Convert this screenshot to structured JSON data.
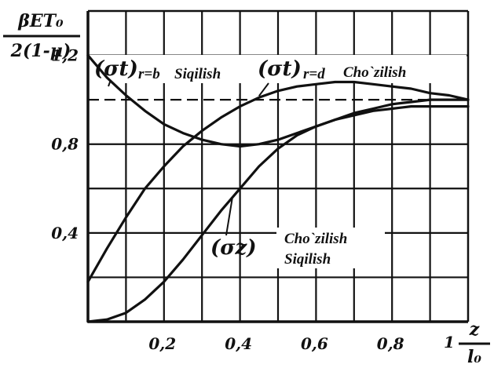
{
  "chart_data": {
    "type": "line",
    "ylabel_numerator": "βET₀",
    "ylabel_denominator": "2(1-μ)",
    "xlabel_numerator": "z",
    "xlabel_denominator": "l₀",
    "xlabel_prefix": "1",
    "xlim": [
      0,
      1.0
    ],
    "ylim": [
      0,
      1.4
    ],
    "x_ticks": [
      {
        "value": 0.2,
        "label": "0,2"
      },
      {
        "value": 0.4,
        "label": "0,4"
      },
      {
        "value": 0.6,
        "label": "0,6"
      },
      {
        "value": 0.8,
        "label": "0,8"
      }
    ],
    "y_ticks": [
      {
        "value": 0.4,
        "label": "0,4"
      },
      {
        "value": 0.8,
        "label": "0,8"
      },
      {
        "value": 1.2,
        "label": "1,2"
      }
    ],
    "reference_line": {
      "y": 1.0,
      "style": "dashed"
    },
    "grid": true,
    "series": [
      {
        "name": "(σt) r=b",
        "label_main": "(σt)",
        "label_sub": "r=b",
        "label_note": "Siqilish",
        "x": [
          0.0,
          0.05,
          0.1,
          0.15,
          0.2,
          0.25,
          0.3,
          0.35,
          0.4,
          0.45,
          0.5,
          0.55,
          0.6,
          0.65,
          0.7,
          0.75,
          0.8,
          0.85,
          0.9,
          0.95,
          1.0
        ],
        "y": [
          1.2,
          1.1,
          1.02,
          0.95,
          0.89,
          0.85,
          0.82,
          0.8,
          0.79,
          0.8,
          0.82,
          0.85,
          0.88,
          0.91,
          0.94,
          0.96,
          0.98,
          0.99,
          1.0,
          1.0,
          1.0
        ]
      },
      {
        "name": "(σt) r=d",
        "label_main": "(σt)",
        "label_sub": "r=d",
        "label_note": "Cho`zilish",
        "x": [
          0.0,
          0.05,
          0.1,
          0.15,
          0.2,
          0.25,
          0.3,
          0.35,
          0.4,
          0.45,
          0.5,
          0.55,
          0.6,
          0.65,
          0.7,
          0.75,
          0.8,
          0.85,
          0.9,
          0.95,
          1.0
        ],
        "y": [
          0.18,
          0.33,
          0.47,
          0.6,
          0.7,
          0.79,
          0.86,
          0.92,
          0.97,
          1.01,
          1.04,
          1.06,
          1.07,
          1.08,
          1.08,
          1.07,
          1.06,
          1.05,
          1.03,
          1.02,
          1.0
        ]
      },
      {
        "name": "(σz)",
        "label_main": "(σz)",
        "x": [
          0.0,
          0.05,
          0.1,
          0.15,
          0.2,
          0.25,
          0.3,
          0.35,
          0.4,
          0.45,
          0.5,
          0.55,
          0.6,
          0.65,
          0.7,
          0.75,
          0.8,
          0.85,
          0.9,
          0.95,
          1.0
        ],
        "y": [
          0.0,
          0.01,
          0.04,
          0.1,
          0.18,
          0.28,
          0.39,
          0.5,
          0.6,
          0.7,
          0.78,
          0.84,
          0.88,
          0.91,
          0.93,
          0.95,
          0.96,
          0.97,
          0.97,
          0.97,
          0.97
        ]
      }
    ],
    "annotations": {
      "zone_top": "Cho`zilish",
      "zone_bottom": "Siqilish"
    }
  }
}
